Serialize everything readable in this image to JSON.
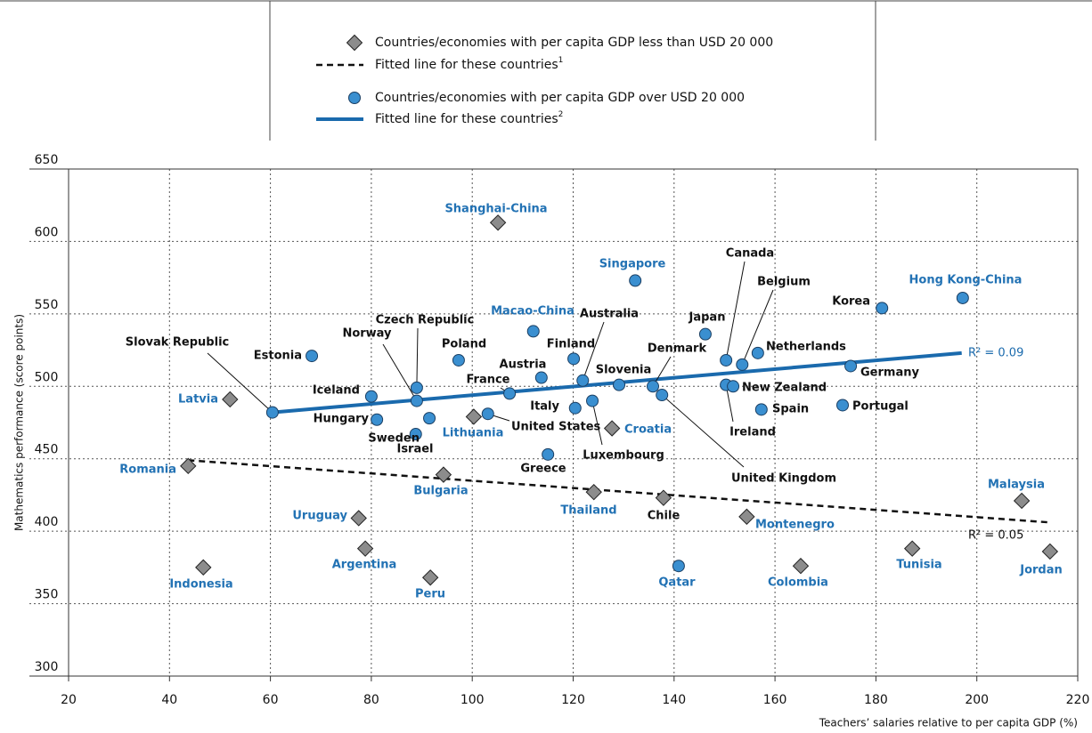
{
  "chart_data": {
    "type": "scatter",
    "x_label": "Teachers’ salaries relative to per capita GDP (%)",
    "y_label": "Mathematics performance (score points)",
    "xlim": [
      20,
      220
    ],
    "xticks": [
      20,
      40,
      60,
      80,
      100,
      120,
      140,
      160,
      180,
      200,
      220
    ],
    "ylim": [
      300,
      650
    ],
    "yticks": [
      300,
      350,
      400,
      450,
      500,
      550,
      600,
      650
    ],
    "grid": true,
    "series": [
      {
        "name": "Countries/economies with per capita GDP less than USD 20 000",
        "marker": "diamond",
        "color": "#8c8c8c",
        "labels": [
          "Shanghai-China",
          "Latvia",
          "Romania",
          "Indonesia",
          "Uruguay",
          "Argentina",
          "Peru",
          "Bulgaria",
          "Lithuania",
          "Croatia",
          "Thailand",
          "Chile",
          "Montenegro",
          "Colombia",
          "Tunisia",
          "Malaysia",
          "Jordan"
        ],
        "label_colors": [
          "#2272b4",
          "#2272b4",
          "#2272b4",
          "#2272b4",
          "#2272b4",
          "#2272b4",
          "#2272b4",
          "#2272b4",
          "#2272b4",
          "#2272b4",
          "#2272b4",
          "#111111",
          "#2272b4",
          "#2272b4",
          "#2272b4",
          "#2272b4",
          "#2272b4"
        ],
        "x": [
          105.1,
          52,
          43.7,
          46.7,
          77.5,
          78.8,
          91.7,
          94.3,
          100.3,
          127.7,
          124.1,
          137.9,
          154.4,
          165.1,
          187.2,
          208.9,
          214.5
        ],
        "values": [
          613,
          491,
          445,
          375,
          409,
          388,
          368,
          439,
          479,
          471,
          427,
          423,
          410,
          376,
          388,
          421,
          386
        ]
      },
      {
        "name": "Countries/economies with per capita GDP over USD 20 000",
        "marker": "circle",
        "color": "#3a8fd0",
        "labels": [
          "Slovak Republic",
          "Estonia",
          "Iceland",
          "Hungary",
          "Czech Republic",
          "Norway",
          "Israel",
          "Sweden",
          "Poland",
          "United States",
          "France",
          "Macao-China",
          "Austria",
          "Greece",
          "Finland",
          "Italy",
          "Australia",
          "Luxembourg",
          "Slovenia",
          "Singapore",
          "Denmark",
          "United Kingdom",
          "Qatar",
          "Japan",
          "Canada",
          "Ireland",
          "New Zealand",
          "Belgium",
          "Netherlands",
          "Spain",
          "Portugal",
          "Germany",
          "Korea",
          "Hong Kong-China"
        ],
        "label_colors": [
          "#111111",
          "#111111",
          "#111111",
          "#111111",
          "#111111",
          "#111111",
          "#111111",
          "#111111",
          "#111111",
          "#111111",
          "#111111",
          "#2272b4",
          "#111111",
          "#111111",
          "#111111",
          "#111111",
          "#111111",
          "#111111",
          "#111111",
          "#2272b4",
          "#111111",
          "#111111",
          "#2272b4",
          "#111111",
          "#111111",
          "#111111",
          "#111111",
          "#111111",
          "#111111",
          "#111111",
          "#111111",
          "#111111",
          "#111111",
          "#2272b4"
        ],
        "x": [
          60.4,
          68.2,
          80,
          81.1,
          89,
          89,
          88.8,
          91.5,
          97.3,
          103.1,
          107.4,
          112.1,
          113.7,
          115,
          120.1,
          120.4,
          121.9,
          123.8,
          129.1,
          132.3,
          135.8,
          137.6,
          140.9,
          146.2,
          150.3,
          150.3,
          151.7,
          153.5,
          156.6,
          157.3,
          173.4,
          175,
          181.2,
          197.2
        ],
        "values": [
          482,
          521,
          493,
          477,
          499,
          490,
          467,
          478,
          518,
          481,
          495,
          538,
          506,
          453,
          519,
          485,
          504,
          490,
          501,
          573,
          500,
          494,
          376,
          536,
          518,
          501,
          500,
          515,
          523,
          484,
          487,
          514,
          554,
          561
        ]
      }
    ],
    "fits": [
      {
        "name": "Fitted line for these countries",
        "note": "1",
        "color": "#111111",
        "dashed": true,
        "x": [
          43.7,
          214.7
        ],
        "values": [
          449,
          406
        ],
        "r2_label": "R² = 0.05"
      },
      {
        "name": "Fitted line for these countries",
        "note": "2",
        "color": "#1a6aad",
        "dashed": false,
        "x": [
          60.4,
          197
        ],
        "values": [
          482,
          523
        ],
        "r2_label": "R² = 0.09"
      }
    ]
  }
}
